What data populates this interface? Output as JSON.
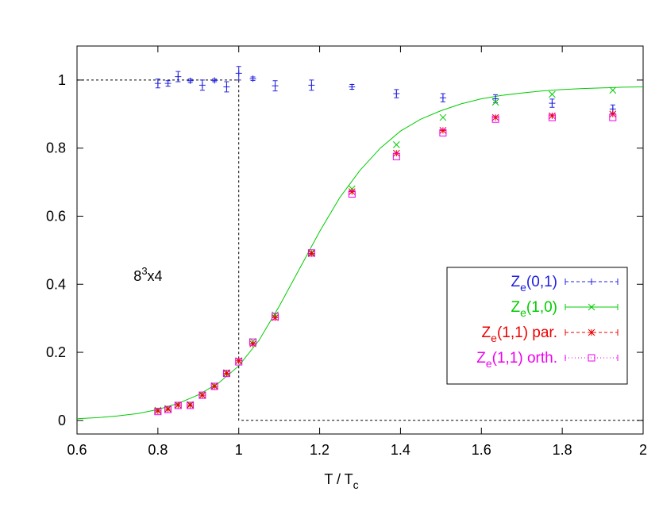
{
  "chart_data": {
    "type": "scatter",
    "title": "",
    "xlabel": {
      "main": "T / T",
      "sub": "c"
    },
    "ylabel": "",
    "xlim": [
      0.6,
      2.0
    ],
    "ylim": [
      -0.04,
      1.1
    ],
    "x_ticks": [
      "0.6",
      "0.8",
      "1",
      "1.2",
      "1.4",
      "1.6",
      "1.8",
      "2"
    ],
    "y_ticks": [
      "0",
      "0.2",
      "0.4",
      "0.6",
      "0.8",
      "1"
    ],
    "grid": false,
    "legend_position": "right",
    "annotation": {
      "base": "8",
      "sup": "3",
      "rest": "x4",
      "x": 0.74,
      "y": 0.41
    },
    "series": [
      {
        "label": {
          "z": "Z",
          "sub": "e",
          "rest": "(0,1)"
        },
        "color": "#2020e0",
        "marker": "plus",
        "line": "dashed",
        "points": [
          [
            0.8,
            0.99,
            0.013
          ],
          [
            0.825,
            0.99,
            0.008
          ],
          [
            0.85,
            1.01,
            0.015
          ],
          [
            0.88,
            0.998,
            0.005
          ],
          [
            0.91,
            0.985,
            0.015
          ],
          [
            0.94,
            0.999,
            0.004
          ],
          [
            0.97,
            0.98,
            0.015
          ],
          [
            1.0,
            1.02,
            0.02
          ],
          [
            1.035,
            1.004,
            0.005
          ],
          [
            1.09,
            0.983,
            0.015
          ],
          [
            1.18,
            0.985,
            0.015
          ],
          [
            1.28,
            0.98,
            0.007
          ],
          [
            1.39,
            0.96,
            0.012
          ],
          [
            1.505,
            0.948,
            0.012
          ],
          [
            1.635,
            0.945,
            0.012
          ],
          [
            1.775,
            0.932,
            0.012
          ],
          [
            1.925,
            0.915,
            0.012
          ]
        ]
      },
      {
        "label": {
          "z": "Z",
          "sub": "e",
          "rest": "(1,0)"
        },
        "color": "#00cc00",
        "marker": "cross",
        "line": "solid",
        "points": [
          [
            0.8,
            0.03,
            0
          ],
          [
            0.825,
            0.035,
            0
          ],
          [
            0.85,
            0.045,
            0
          ],
          [
            0.88,
            0.047,
            0
          ],
          [
            0.91,
            0.075,
            0
          ],
          [
            0.94,
            0.102,
            0
          ],
          [
            0.97,
            0.14,
            0
          ],
          [
            1.0,
            0.175,
            0
          ],
          [
            1.035,
            0.232,
            0
          ],
          [
            1.09,
            0.31,
            0
          ],
          [
            1.18,
            0.493,
            0
          ],
          [
            1.28,
            0.68,
            0
          ],
          [
            1.39,
            0.81,
            0
          ],
          [
            1.505,
            0.89,
            0
          ],
          [
            1.635,
            0.935,
            0
          ],
          [
            1.775,
            0.958,
            0
          ],
          [
            1.925,
            0.97,
            0
          ]
        ]
      },
      {
        "label": {
          "z": "Z",
          "sub": "e",
          "rest": "(1,1) par."
        },
        "color": "#ee0000",
        "marker": "star",
        "line": "dashed",
        "points": [
          [
            0.8,
            0.028,
            0
          ],
          [
            0.825,
            0.033,
            0
          ],
          [
            0.85,
            0.045,
            0
          ],
          [
            0.88,
            0.045,
            0
          ],
          [
            0.91,
            0.074,
            0
          ],
          [
            0.94,
            0.1,
            0
          ],
          [
            0.97,
            0.138,
            0
          ],
          [
            1.0,
            0.175,
            0
          ],
          [
            1.035,
            0.225,
            0
          ],
          [
            1.09,
            0.302,
            0
          ],
          [
            1.18,
            0.49,
            0
          ],
          [
            1.28,
            0.672,
            0
          ],
          [
            1.39,
            0.785,
            0
          ],
          [
            1.505,
            0.852,
            0
          ],
          [
            1.635,
            0.89,
            0
          ],
          [
            1.775,
            0.895,
            0
          ],
          [
            1.925,
            0.9,
            0
          ]
        ]
      },
      {
        "label": {
          "z": "Z",
          "sub": "e",
          "rest": "(1,1) orth."
        },
        "color": "#ee00ee",
        "marker": "square",
        "line": "dotted",
        "points": [
          [
            0.8,
            0.026,
            0
          ],
          [
            0.825,
            0.032,
            0
          ],
          [
            0.85,
            0.044,
            0
          ],
          [
            0.88,
            0.044,
            0
          ],
          [
            0.91,
            0.074,
            0
          ],
          [
            0.94,
            0.1,
            0
          ],
          [
            0.97,
            0.138,
            0
          ],
          [
            1.0,
            0.172,
            0
          ],
          [
            1.035,
            0.23,
            0
          ],
          [
            1.09,
            0.305,
            0
          ],
          [
            1.18,
            0.492,
            0
          ],
          [
            1.28,
            0.665,
            0
          ],
          [
            1.39,
            0.775,
            0
          ],
          [
            1.505,
            0.845,
            0
          ],
          [
            1.635,
            0.885,
            0
          ],
          [
            1.775,
            0.89,
            0
          ],
          [
            1.925,
            0.89,
            0
          ]
        ]
      }
    ],
    "curves": [
      {
        "color": "#00cc00",
        "style": "solid",
        "points": [
          [
            0.6,
            0.005
          ],
          [
            0.65,
            0.008
          ],
          [
            0.7,
            0.013
          ],
          [
            0.75,
            0.02
          ],
          [
            0.8,
            0.032
          ],
          [
            0.85,
            0.05
          ],
          [
            0.9,
            0.075
          ],
          [
            0.95,
            0.11
          ],
          [
            1.0,
            0.16
          ],
          [
            1.05,
            0.235
          ],
          [
            1.1,
            0.335
          ],
          [
            1.15,
            0.445
          ],
          [
            1.2,
            0.555
          ],
          [
            1.25,
            0.655
          ],
          [
            1.3,
            0.735
          ],
          [
            1.35,
            0.8
          ],
          [
            1.4,
            0.85
          ],
          [
            1.45,
            0.885
          ],
          [
            1.5,
            0.91
          ],
          [
            1.55,
            0.93
          ],
          [
            1.6,
            0.945
          ],
          [
            1.65,
            0.955
          ],
          [
            1.7,
            0.962
          ],
          [
            1.75,
            0.968
          ],
          [
            1.8,
            0.972
          ],
          [
            1.85,
            0.975
          ],
          [
            1.9,
            0.977
          ],
          [
            1.95,
            0.979
          ],
          [
            2.0,
            0.98
          ]
        ]
      },
      {
        "color": "#000000",
        "style": "dotted",
        "points": [
          [
            0.6,
            1.0
          ],
          [
            1.0,
            1.0
          ],
          [
            1.0,
            0.0
          ],
          [
            2.0,
            0.0
          ]
        ]
      }
    ]
  }
}
